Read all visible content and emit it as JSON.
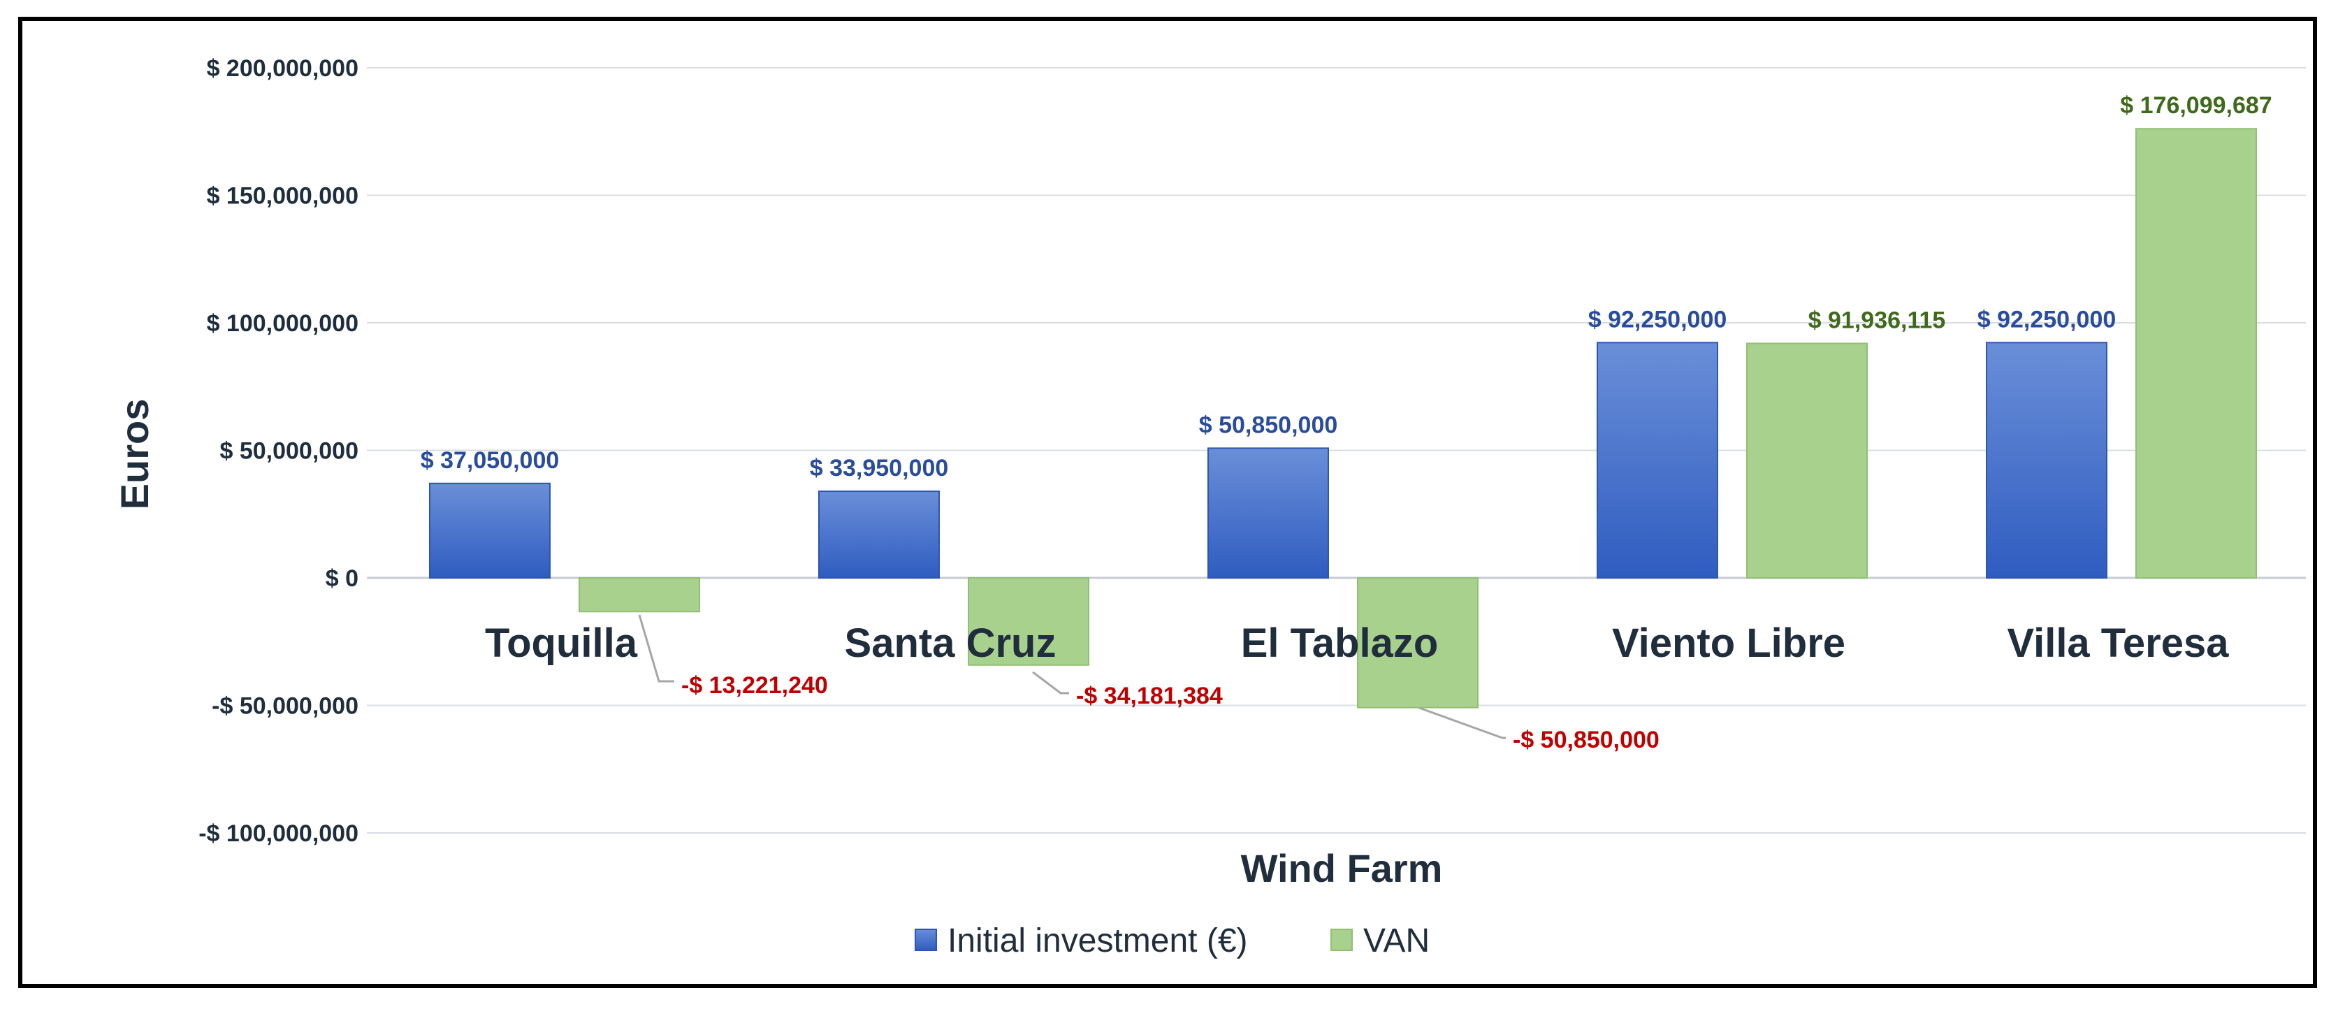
{
  "chart_data": {
    "type": "bar",
    "title": "",
    "xlabel": "Wind Farm",
    "ylabel": "Euros",
    "ylim": [
      -100000000,
      200000000
    ],
    "yticks": [
      200000000,
      150000000,
      100000000,
      50000000,
      0,
      -50000000,
      -100000000
    ],
    "ytick_labels": [
      "$ 200,000,000",
      "$ 150,000,000",
      "$ 100,000,000",
      "$ 50,000,000",
      "$ 0",
      "-$ 50,000,000",
      "-$ 100,000,000"
    ],
    "categories": [
      "Toquilla",
      "Santa Cruz",
      "El Tablazo",
      "Viento Libre",
      "Villa Teresa"
    ],
    "series": [
      {
        "name": "Initial investment (€)",
        "color": "#3a66c4",
        "label_color": "#2a4c9c",
        "values": [
          37050000,
          33950000,
          50850000,
          92250000,
          92250000
        ],
        "labels": [
          "$ 37,050,000",
          "$ 33,950,000",
          "$ 50,850,000",
          "$ 92,250,000",
          "$ 92,250,000"
        ]
      },
      {
        "name": "VAN",
        "color": "#a9d18e",
        "positive_label_color": "#3f6a1c",
        "negative_label_color": "#c00000",
        "values": [
          -13221240,
          -34181384,
          -50850000,
          91936115,
          176099687
        ],
        "labels": [
          "-$ 13,221,240",
          "-$ 34,181,384",
          "-$ 50,850,000",
          "$ 91,936,115",
          "$ 176,099,687"
        ]
      }
    ],
    "legend_position": "bottom",
    "grid": true
  }
}
